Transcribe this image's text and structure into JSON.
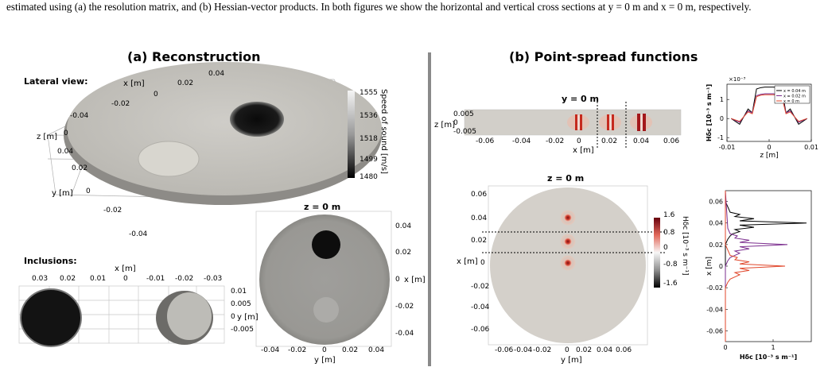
{
  "caption": "estimated using (a) the resolution matrix, and (b) Hessian-vector products. In both figures we show the horizontal and vertical cross sections at y = 0 m and x = 0 m, respectively.",
  "panel_a": {
    "title": "(a)    Reconstruction",
    "lateral_label": "Lateral view:",
    "inclusions_label": "Inclusions:",
    "axis_x": "x [m]",
    "axis_y": "y [m]",
    "axis_z": "z [m]",
    "colorbar": {
      "label": "Speed of sound [m/s]",
      "ticks": [
        "1555",
        "1536",
        "1518",
        "1499",
        "1480"
      ]
    },
    "lateral_x_ticks": [
      "-0.02",
      "0",
      "0.02",
      "0.04"
    ],
    "lateral_y_ticks": [
      "0.04",
      "0.02",
      "0",
      "-0.02",
      "-0.04"
    ],
    "lateral_z_tick": "-0.04",
    "lateral_z_tick2": "0",
    "slice_title": "z = 0 m",
    "slice_x_ticks": [
      "-0.04",
      "-0.02",
      "0",
      "0.02",
      "0.04"
    ],
    "slice_y_ticks": [
      "0.04",
      "0.02",
      "0",
      "-0.02",
      "-0.04"
    ],
    "incl_x_ticks": [
      "0.03",
      "0.02",
      "0.01",
      "0",
      "-0.01",
      "-0.02",
      "-0.03"
    ],
    "incl_y_ticks": [
      "0.01",
      "0.005",
      "0",
      "-0.005"
    ]
  },
  "panel_b": {
    "title": "(b)    Point-spread functions",
    "top_title": "y = 0 m",
    "top_x_ticks": [
      "-0.06",
      "-0.04",
      "-0.02",
      "0",
      "0.02",
      "0.04",
      "0.06"
    ],
    "top_z_ticks": [
      "0.005",
      "0",
      "-0.005"
    ],
    "slice_title": "z = 0 m",
    "slice_ticks": [
      "-0.06",
      "-0.04",
      "-0.02",
      "0",
      "0.02",
      "0.04",
      "0.06"
    ],
    "slice_y_ticks": [
      "0.06",
      "0.04",
      "0.02",
      "0",
      "-0.02",
      "-0.04",
      "-0.06"
    ],
    "colorbar": {
      "label": "Hδc [10⁻³ s m⁻¹]",
      "ticks": [
        "1.6",
        "0.8",
        "0",
        "-0.8",
        "-1.6"
      ]
    },
    "x_label": "x [m]",
    "y_label": "y [m]",
    "z_label": "z [m]"
  },
  "chart_data": [
    {
      "type": "line",
      "xlabel": "z [m]",
      "ylabel": "Hδc [10⁻³ s m⁻¹]",
      "scale_note": "×10⁻³",
      "xlim": [
        -0.01,
        0.01
      ],
      "ylim": [
        -1.2,
        1.8
      ],
      "x_ticks": [
        "-0.01",
        "0",
        "0.01"
      ],
      "y_ticks": [
        "-1",
        "0",
        "1"
      ],
      "legend_position": "top-right",
      "series": [
        {
          "name": "x = 0.04 m",
          "color": "#000000",
          "x": [
            -0.009,
            -0.007,
            -0.005,
            -0.004,
            -0.003,
            -0.002,
            -0.001,
            0,
            0.001,
            0.002,
            0.003,
            0.004,
            0.005,
            0.007,
            0.009
          ],
          "y": [
            0.0,
            -0.3,
            0.5,
            0.3,
            1.55,
            1.62,
            1.65,
            1.65,
            1.65,
            1.62,
            1.55,
            0.3,
            0.5,
            -0.3,
            0.0
          ]
        },
        {
          "name": "x = 0.02 m",
          "color": "#7b2d8e",
          "x": [
            -0.009,
            -0.007,
            -0.005,
            -0.004,
            -0.003,
            -0.002,
            -0.001,
            0,
            0.001,
            0.002,
            0.003,
            0.004,
            0.005,
            0.007,
            0.009
          ],
          "y": [
            0.0,
            -0.2,
            0.4,
            0.3,
            1.2,
            1.27,
            1.3,
            1.3,
            1.3,
            1.27,
            1.2,
            0.3,
            0.4,
            -0.2,
            0.0
          ]
        },
        {
          "name": "x = 0 m",
          "color": "#e0462a",
          "x": [
            -0.009,
            -0.007,
            -0.005,
            -0.004,
            -0.003,
            -0.002,
            -0.001,
            0,
            0.001,
            0.002,
            0.003,
            0.004,
            0.005,
            0.007,
            0.009
          ],
          "y": [
            0.0,
            -0.15,
            0.35,
            0.25,
            1.15,
            1.22,
            1.25,
            1.25,
            1.25,
            1.22,
            1.15,
            0.25,
            0.35,
            -0.15,
            0.0
          ]
        }
      ]
    },
    {
      "type": "line",
      "xlabel": "Hδc [10⁻³ s m⁻¹]",
      "ylabel": "x [m]",
      "xlim": [
        0,
        1.8
      ],
      "ylim": [
        -0.07,
        0.07
      ],
      "x_ticks": [
        "0",
        "1"
      ],
      "y_ticks": [
        "0.06",
        "0.04",
        "0.02",
        "0",
        "-0.02",
        "-0.04",
        "-0.06"
      ],
      "series": [
        {
          "color": "#000000",
          "x": [
            0.0,
            0.0,
            0.05,
            0.1,
            0.15,
            0.3,
            0.2,
            0.6,
            0.3,
            1.7,
            0.3,
            0.6,
            0.2,
            0.3,
            0.1,
            0.05,
            0.0,
            0.0
          ],
          "y": [
            -0.07,
            0.02,
            0.025,
            0.028,
            0.03,
            0.032,
            0.034,
            0.036,
            0.038,
            0.04,
            0.042,
            0.044,
            0.046,
            0.048,
            0.05,
            0.055,
            0.06,
            0.07
          ]
        },
        {
          "color": "#7b2d8e",
          "x": [
            0.0,
            0.0,
            0.05,
            0.1,
            0.2,
            0.3,
            0.2,
            0.5,
            0.3,
            1.3,
            0.3,
            0.5,
            0.2,
            0.25,
            0.1,
            0.05,
            0.0
          ],
          "y": [
            -0.07,
            0.0,
            0.005,
            0.008,
            0.01,
            0.012,
            0.014,
            0.016,
            0.018,
            0.02,
            0.022,
            0.024,
            0.026,
            0.028,
            0.03,
            0.035,
            0.07
          ]
        },
        {
          "color": "#e0462a",
          "x": [
            0.0,
            0.0,
            0.05,
            0.1,
            0.2,
            0.3,
            0.2,
            0.5,
            0.3,
            1.25,
            0.3,
            0.5,
            0.2,
            0.25,
            0.1,
            0.05,
            0.0,
            0.0
          ],
          "y": [
            -0.07,
            -0.02,
            -0.015,
            -0.012,
            -0.01,
            -0.008,
            -0.006,
            -0.004,
            -0.002,
            0.0,
            0.002,
            0.004,
            0.006,
            0.008,
            0.01,
            0.015,
            0.02,
            0.07
          ]
        }
      ]
    }
  ]
}
